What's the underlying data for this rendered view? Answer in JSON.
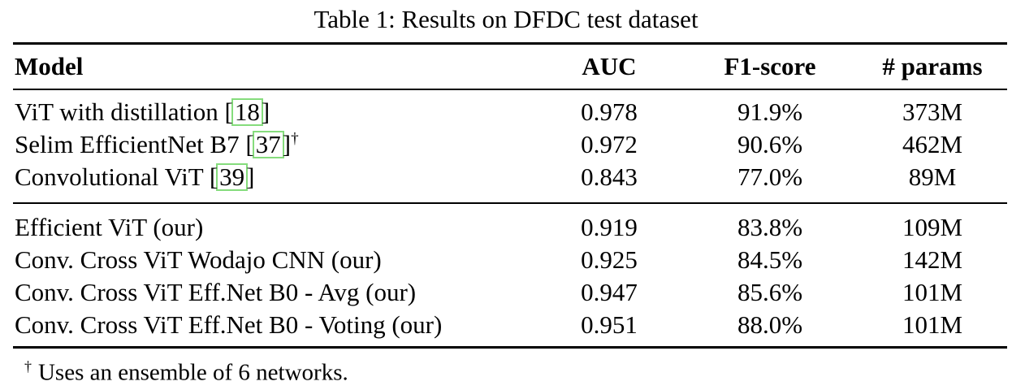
{
  "caption": "Table 1: Results on DFDC test dataset",
  "colors": {
    "text": "#000000",
    "background": "#ffffff",
    "citation_border": "#85dc7c"
  },
  "citation": {
    "open": "[",
    "close": "]"
  },
  "table": {
    "headers": {
      "model": "Model",
      "auc": "AUC",
      "f1": "F1-score",
      "params": "# params"
    },
    "group1": [
      {
        "name": "ViT with distillation ",
        "cite": "18",
        "sup": "",
        "auc": "0.978",
        "f1": "91.9%",
        "params": "373M"
      },
      {
        "name": "Selim EfficientNet B7 ",
        "cite": "37",
        "sup": "†",
        "auc": "0.972",
        "f1": "90.6%",
        "params": "462M"
      },
      {
        "name": "Convolutional ViT ",
        "cite": "39",
        "sup": "",
        "auc": "0.843",
        "f1": "77.0%",
        "params": "89M"
      }
    ],
    "group2": [
      {
        "name": "Efficient ViT (our)",
        "auc": "0.919",
        "f1": "83.8%",
        "params": "109M"
      },
      {
        "name": "Conv. Cross ViT Wodajo CNN (our)",
        "auc": "0.925",
        "f1": "84.5%",
        "params": "142M"
      },
      {
        "name": "Conv. Cross ViT Eff.Net B0 - Avg (our)",
        "auc": "0.947",
        "f1": "85.6%",
        "params": "101M"
      },
      {
        "name": "Conv. Cross ViT Eff.Net B0 - Voting (our)",
        "auc": "0.951",
        "f1": "88.0%",
        "params": "101M"
      }
    ]
  },
  "footnote": {
    "marker": "†",
    "text": "Uses an ensemble of 6 networks."
  }
}
